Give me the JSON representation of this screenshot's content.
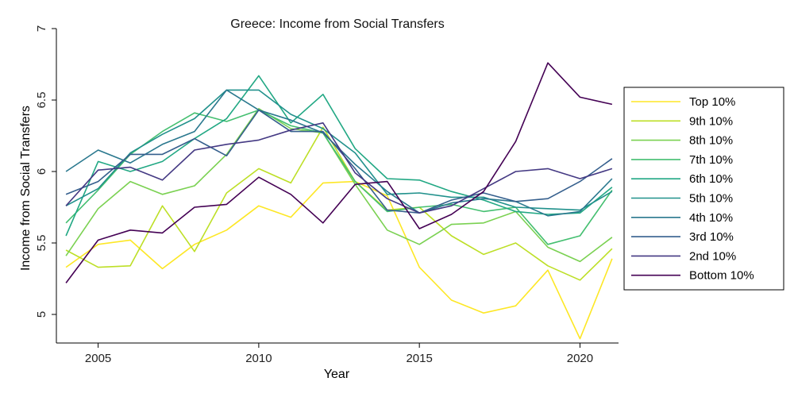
{
  "chart_data": {
    "type": "line",
    "title": "Greece: Income from Social Transfers",
    "xlabel": "Year",
    "ylabel": "Income from Social Transfers",
    "xlim": [
      2004,
      2021
    ],
    "ylim": [
      4.8,
      7.0
    ],
    "xticks": [
      2005,
      2010,
      2015,
      2020
    ],
    "yticks": [
      5,
      5.5,
      6,
      6.5,
      7
    ],
    "ytick_labels": [
      "5",
      "5.5",
      "6",
      "6.5",
      "7"
    ],
    "xtick_labels": [
      "2005",
      "2010",
      "2015",
      "2020"
    ],
    "grid": false,
    "legend_position": "right",
    "x": [
      2004,
      2005,
      2006,
      2007,
      2008,
      2009,
      2010,
      2011,
      2012,
      2013,
      2014,
      2015,
      2016,
      2017,
      2018,
      2019,
      2020,
      2021
    ],
    "series": [
      {
        "name": "Top 10%",
        "color": "#fde725",
        "values": [
          5.33,
          5.49,
          5.52,
          5.32,
          5.49,
          5.59,
          5.76,
          5.68,
          5.92,
          5.93,
          5.83,
          5.33,
          5.1,
          5.01,
          5.06,
          5.31,
          4.83,
          5.39
        ]
      },
      {
        "name": "9th 10%",
        "color": "#bddf26",
        "values": [
          5.45,
          5.33,
          5.34,
          5.76,
          5.44,
          5.85,
          6.02,
          5.92,
          6.31,
          5.93,
          5.73,
          5.75,
          5.55,
          5.42,
          5.5,
          5.34,
          5.24,
          5.46
        ]
      },
      {
        "name": "8th 10%",
        "color": "#7ad151",
        "values": [
          5.41,
          5.74,
          5.93,
          5.84,
          5.9,
          6.12,
          6.44,
          6.3,
          6.27,
          5.91,
          5.59,
          5.49,
          5.63,
          5.64,
          5.72,
          5.47,
          5.37,
          5.54
        ]
      },
      {
        "name": "7th 10%",
        "color": "#44bf70",
        "values": [
          5.64,
          5.87,
          6.12,
          6.28,
          6.41,
          6.35,
          6.43,
          6.32,
          6.27,
          5.93,
          5.72,
          5.75,
          5.77,
          5.72,
          5.75,
          5.49,
          5.55,
          5.87
        ]
      },
      {
        "name": "6th 10%",
        "color": "#22a884",
        "values": [
          5.55,
          6.07,
          6.0,
          6.07,
          6.23,
          6.37,
          6.67,
          6.34,
          6.54,
          6.16,
          5.95,
          5.94,
          5.86,
          5.8,
          5.72,
          5.7,
          5.71,
          5.89
        ]
      },
      {
        "name": "5th 10%",
        "color": "#21918c",
        "values": [
          5.76,
          5.88,
          6.13,
          6.26,
          6.37,
          6.57,
          6.57,
          6.4,
          6.3,
          6.13,
          5.84,
          5.85,
          5.82,
          5.82,
          5.75,
          5.74,
          5.73,
          5.86
        ]
      },
      {
        "name": "4th 10%",
        "color": "#2a788e",
        "values": [
          6.0,
          6.15,
          6.06,
          6.19,
          6.28,
          6.57,
          6.43,
          6.36,
          6.27,
          6.05,
          5.86,
          5.71,
          5.78,
          5.81,
          5.79,
          5.69,
          5.72,
          5.95
        ]
      },
      {
        "name": "3rd 10%",
        "color": "#355f8d",
        "values": [
          5.84,
          5.93,
          6.12,
          6.12,
          6.23,
          6.11,
          6.43,
          6.28,
          6.28,
          6.02,
          5.73,
          5.71,
          5.8,
          5.85,
          5.79,
          5.81,
          5.93,
          6.09
        ]
      },
      {
        "name": "2nd 10%",
        "color": "#443983",
        "values": [
          5.76,
          6.01,
          6.03,
          5.94,
          6.15,
          6.19,
          6.22,
          6.29,
          6.34,
          5.99,
          5.81,
          5.71,
          5.76,
          5.88,
          6.0,
          6.02,
          5.95,
          6.02
        ]
      },
      {
        "name": "Bottom 10%",
        "color": "#440154",
        "values": [
          5.22,
          5.52,
          5.59,
          5.57,
          5.75,
          5.77,
          5.96,
          5.84,
          5.64,
          5.91,
          5.93,
          5.6,
          5.7,
          5.86,
          6.21,
          6.76,
          6.52,
          6.47
        ]
      }
    ]
  }
}
